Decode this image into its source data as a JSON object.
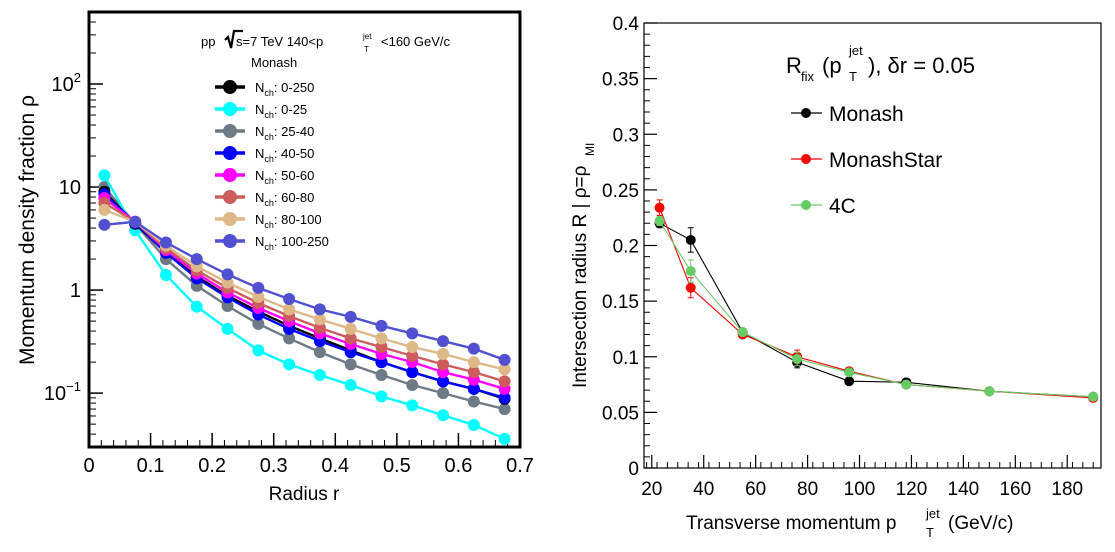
{
  "chart_data": [
    {
      "type": "line",
      "title": "",
      "xlabel": "Radius r",
      "ylabel": "Momentum density fraction ρ",
      "xlim": [
        0,
        0.7
      ],
      "ylim": [
        0.03,
        500
      ],
      "y_scale": "log",
      "grid": false,
      "legend_position": "top-right",
      "x_ticks": [
        "0",
        "0.1",
        "0.2",
        "0.3",
        "0.4",
        "0.5",
        "0.6",
        "0.7"
      ],
      "y_ticks": [
        {
          "value": 0.1,
          "base": "10",
          "exp": "−1"
        },
        {
          "value": 1,
          "base": "1",
          "exp": ""
        },
        {
          "value": 10,
          "base": "10",
          "exp": ""
        },
        {
          "value": 100,
          "base": "10",
          "exp": "2"
        }
      ],
      "header": {
        "prefix": "pp ",
        "sqrt": "s",
        "energy": "=7 TeV 140<p",
        "sup": "jet",
        "sub": "T",
        "suffix": "<160 GeV/c",
        "generator": "Monash"
      },
      "legend_prefix": "N",
      "legend_sub": "ch",
      "x": [
        0.025,
        0.075,
        0.125,
        0.175,
        0.225,
        0.275,
        0.325,
        0.375,
        0.425,
        0.475,
        0.525,
        0.575,
        0.625,
        0.675
      ],
      "series": [
        {
          "name": ": 0-250",
          "color": "#000000",
          "values": [
            9.0,
            4.4,
            2.3,
            1.35,
            0.88,
            0.62,
            0.45,
            0.34,
            0.26,
            0.2,
            0.16,
            0.13,
            0.11,
            0.088
          ]
        },
        {
          "name": ": 0-25",
          "color": "#00ffff",
          "values": [
            13.0,
            3.8,
            1.4,
            0.69,
            0.42,
            0.26,
            0.19,
            0.15,
            0.12,
            0.093,
            0.076,
            0.061,
            0.049,
            0.036
          ]
        },
        {
          "name": ": 25-40",
          "color": "#6e7b87",
          "values": [
            10.0,
            4.4,
            2.0,
            1.1,
            0.7,
            0.47,
            0.34,
            0.25,
            0.19,
            0.15,
            0.12,
            0.1,
            0.083,
            0.07
          ]
        },
        {
          "name": ": 40-50",
          "color": "#0000ff",
          "values": [
            8.5,
            4.5,
            2.3,
            1.3,
            0.85,
            0.58,
            0.42,
            0.32,
            0.25,
            0.2,
            0.16,
            0.13,
            0.11,
            0.09
          ]
        },
        {
          "name": ": 50-60",
          "color": "#ff00ff",
          "values": [
            7.8,
            4.6,
            2.45,
            1.45,
            0.95,
            0.67,
            0.5,
            0.38,
            0.3,
            0.24,
            0.2,
            0.16,
            0.135,
            0.11
          ]
        },
        {
          "name": ": 60-80",
          "color": "#cd5c5c",
          "values": [
            7.0,
            4.6,
            2.55,
            1.55,
            1.05,
            0.75,
            0.56,
            0.43,
            0.34,
            0.28,
            0.23,
            0.19,
            0.16,
            0.13
          ]
        },
        {
          "name": ": 80-100",
          "color": "#deb887",
          "values": [
            6.0,
            4.6,
            2.7,
            1.7,
            1.18,
            0.86,
            0.65,
            0.52,
            0.42,
            0.34,
            0.28,
            0.24,
            0.2,
            0.17
          ]
        },
        {
          "name": ": 100-250",
          "color": "#5050d0",
          "values": [
            4.3,
            4.6,
            2.9,
            2.0,
            1.42,
            1.05,
            0.82,
            0.65,
            0.55,
            0.45,
            0.38,
            0.32,
            0.27,
            0.21
          ]
        }
      ]
    },
    {
      "type": "line",
      "title": "",
      "xlabel_main": "Transverse momentum p",
      "xlabel_sup": "jet",
      "xlabel_sub": "T",
      "xlabel_unit": " (GeV/c)",
      "ylabel_main": "Intersection radius R | ρ=ρ",
      "ylabel_sub": "MI",
      "xlim": [
        17,
        193
      ],
      "ylim": [
        0,
        0.4
      ],
      "grid": false,
      "legend_position": "top-right",
      "x_ticks": [
        "20",
        "40",
        "60",
        "80",
        "100",
        "120",
        "140",
        "160",
        "180"
      ],
      "y_ticks": [
        "0",
        "0.05",
        "0.1",
        "0.15",
        "0.2",
        "0.25",
        "0.3",
        "0.35",
        "0.4"
      ],
      "annotation": {
        "r": "R",
        "fix": "fix",
        "open": "(p",
        "sup": "jet",
        "sub": "T",
        "close": "), δr = 0.05"
      },
      "x": [
        23,
        35,
        55,
        76,
        96,
        118,
        150,
        190
      ],
      "series": [
        {
          "name": "Monash",
          "color": "#000000",
          "values": [
            0.22,
            0.205,
            0.122,
            0.095,
            0.078,
            0.077,
            0.069,
            0.064
          ],
          "errors": [
            0.004,
            0.011,
            0.003,
            0.005,
            0.002,
            0.002,
            0.002,
            0.002
          ]
        },
        {
          "name": "MonashStar",
          "color": "#ff0000",
          "values": [
            0.234,
            0.162,
            0.12,
            0.1,
            0.087,
            0.075,
            0.069,
            0.063
          ],
          "errors": [
            0.007,
            0.009,
            0.003,
            0.006,
            0.002,
            0.002,
            0.002,
            0.002
          ]
        },
        {
          "name": "4C",
          "color": "#66cc66",
          "values": [
            0.222,
            0.177,
            0.122,
            0.098,
            0.086,
            0.075,
            0.069,
            0.064
          ],
          "errors": [
            0.004,
            0.01,
            0.003,
            0.006,
            0.002,
            0.002,
            0.002,
            0.002
          ]
        }
      ]
    }
  ]
}
